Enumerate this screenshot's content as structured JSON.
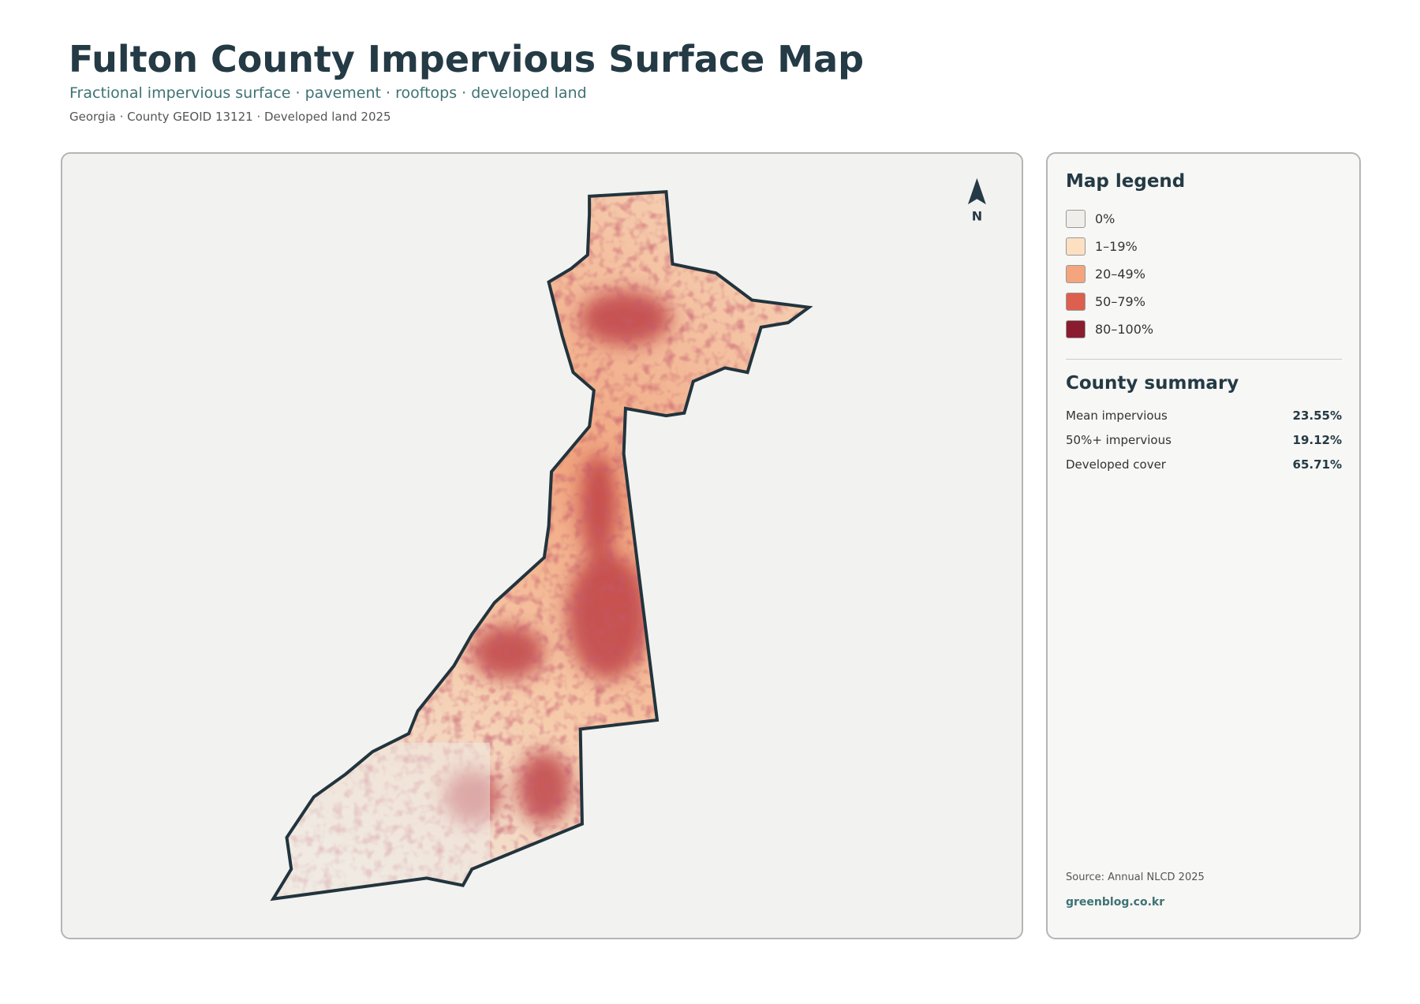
{
  "header": {
    "title": "Fulton County Impervious Surface Map",
    "subtitle": "Fractional impervious surface · pavement · rooftops · developed land",
    "meta": "Georgia · County GEOID 13121 · Developed land 2025"
  },
  "map": {
    "north_label": "N"
  },
  "legend": {
    "title": "Map legend",
    "items": [
      {
        "label": "0%",
        "color": "#efeeea"
      },
      {
        "label": "1–19%",
        "color": "#fde0c2"
      },
      {
        "label": "20–49%",
        "color": "#f4a57d"
      },
      {
        "label": "50–79%",
        "color": "#dd5f4e"
      },
      {
        "label": "80–100%",
        "color": "#8b1c30"
      }
    ]
  },
  "summary": {
    "title": "County summary",
    "rows": [
      {
        "label": "Mean impervious",
        "value": "23.55%"
      },
      {
        "label": "50%+ impervious",
        "value": "19.12%"
      },
      {
        "label": "Developed cover",
        "value": "65.71%"
      }
    ]
  },
  "footer": {
    "source": "Source: Annual NLCD 2025",
    "site": "greenblog.co.kr"
  }
}
